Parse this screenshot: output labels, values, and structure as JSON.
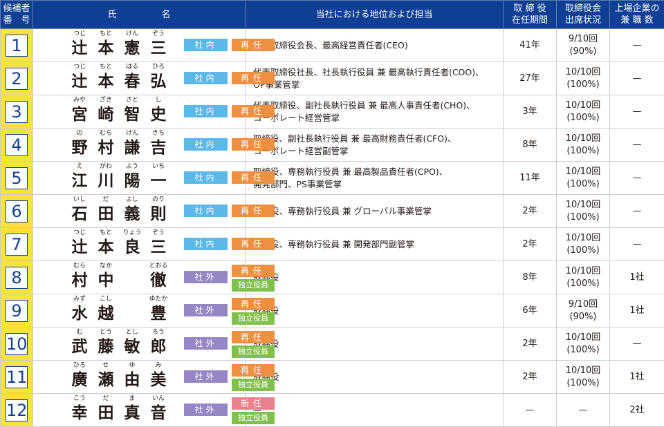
{
  "headers": {
    "num_line1": "候補者",
    "num_line2": "番　号",
    "name": "氏　　　　　名",
    "position": "当社における地位および担当",
    "tenure_line1": "取 締 役",
    "tenure_line2": "在任期間",
    "attendance_line1": "取締役会",
    "attendance_line2": "出席状況",
    "concurrent_line1": "上場企業の",
    "concurrent_line2": "兼 職 数"
  },
  "rows": [
    {
      "num": "1",
      "kanji": [
        "辻",
        "本",
        "憲",
        "三"
      ],
      "ruby": [
        "つじ",
        "もと",
        "けん",
        "ぞう"
      ],
      "kind": "社内",
      "status": "再任",
      "independent": "",
      "position_l1": "代表取締役会長、最高経営責任者(CEO)",
      "position_l2": "",
      "tenure": "41年",
      "att_l1": "9/10回",
      "att_l2": "(90%)",
      "concurrent": "—"
    },
    {
      "num": "2",
      "kanji": [
        "辻",
        "本",
        "春",
        "弘"
      ],
      "ruby": [
        "つじ",
        "もと",
        "はる",
        "ひろ"
      ],
      "kind": "社内",
      "status": "再任",
      "independent": "",
      "position_l1": "代表取締役社長、社長執行役員 兼 最高執行責任者(COO)、",
      "position_l2": "OP事業管掌",
      "tenure": "27年",
      "att_l1": "10/10回",
      "att_l2": "(100%)",
      "concurrent": "—"
    },
    {
      "num": "3",
      "kanji": [
        "宮",
        "崎",
        "智",
        "史"
      ],
      "ruby": [
        "みや",
        "ざき",
        "さと",
        "し"
      ],
      "kind": "社内",
      "status": "再任",
      "independent": "",
      "position_l1": "代表取締役、副社長執行役員 兼 最高人事責任者(CHO)、",
      "position_l2": "コーポレート経営管掌",
      "tenure": "3年",
      "att_l1": "10/10回",
      "att_l2": "(100%)",
      "concurrent": "—"
    },
    {
      "num": "4",
      "kanji": [
        "野",
        "村",
        "謙",
        "吉"
      ],
      "ruby": [
        "の",
        "むら",
        "けん",
        "きち"
      ],
      "kind": "社内",
      "status": "再任",
      "independent": "",
      "position_l1": "取締役、副社長執行役員 兼 最高財務責任者(CFO)、",
      "position_l2": "コーポレート経営副管掌",
      "tenure": "8年",
      "att_l1": "10/10回",
      "att_l2": "(100%)",
      "concurrent": "—"
    },
    {
      "num": "5",
      "kanji": [
        "江",
        "川",
        "陽",
        "一"
      ],
      "ruby": [
        "え",
        "がわ",
        "よう",
        "いち"
      ],
      "kind": "社内",
      "status": "再任",
      "independent": "",
      "position_l1": "取締役、専務執行役員 兼 最高製品責任者(CPO)、",
      "position_l2": "開発部門、PS事業管掌",
      "tenure": "11年",
      "att_l1": "10/10回",
      "att_l2": "(100%)",
      "concurrent": "—"
    },
    {
      "num": "6",
      "kanji": [
        "石",
        "田",
        "義",
        "則"
      ],
      "ruby": [
        "いし",
        "だ",
        "よし",
        "のり"
      ],
      "kind": "社内",
      "status": "再任",
      "independent": "",
      "position_l1": "取締役、専務執行役員 兼 グローバル事業管掌",
      "position_l2": "",
      "tenure": "2年",
      "att_l1": "10/10回",
      "att_l2": "(100%)",
      "concurrent": "—"
    },
    {
      "num": "7",
      "kanji": [
        "辻",
        "本",
        "良",
        "三"
      ],
      "ruby": [
        "つじ",
        "もと",
        "りょう",
        "ぞう"
      ],
      "kind": "社内",
      "status": "再任",
      "independent": "",
      "position_l1": "取締役、専務執行役員 兼 開発部門副管掌",
      "position_l2": "",
      "tenure": "2年",
      "att_l1": "10/10回",
      "att_l2": "(100%)",
      "concurrent": "—"
    },
    {
      "num": "8",
      "kanji": [
        "村",
        "中",
        "",
        "徹"
      ],
      "ruby": [
        "むら",
        "なか",
        "",
        "とおる"
      ],
      "kind": "社外",
      "status": "再任",
      "independent": "独立役員",
      "position_l1": "取締役",
      "position_l2": "",
      "tenure": "8年",
      "att_l1": "10/10回",
      "att_l2": "(100%)",
      "concurrent": "1社"
    },
    {
      "num": "9",
      "kanji": [
        "水",
        "越",
        "",
        "豊"
      ],
      "ruby": [
        "みず",
        "こし",
        "",
        "ゆたか"
      ],
      "kind": "社外",
      "status": "再任",
      "independent": "独立役員",
      "position_l1": "取締役",
      "position_l2": "",
      "tenure": "6年",
      "att_l1": "9/10回",
      "att_l2": "(90%)",
      "concurrent": "1社"
    },
    {
      "num": "10",
      "kanji": [
        "武",
        "藤",
        "敏",
        "郎"
      ],
      "ruby": [
        "む",
        "とう",
        "とし",
        "ろう"
      ],
      "kind": "社外",
      "status": "再任",
      "independent": "独立役員",
      "position_l1": "取締役",
      "position_l2": "",
      "tenure": "2年",
      "att_l1": "10/10回",
      "att_l2": "(100%)",
      "concurrent": "—"
    },
    {
      "num": "11",
      "kanji": [
        "廣",
        "瀬",
        "由",
        "美"
      ],
      "ruby": [
        "ひろ",
        "せ",
        "ゆ",
        "み"
      ],
      "kind": "社外",
      "status": "再任",
      "independent": "独立役員",
      "position_l1": "取締役",
      "position_l2": "",
      "tenure": "2年",
      "att_l1": "10/10回",
      "att_l2": "(100%)",
      "concurrent": "1社"
    },
    {
      "num": "12",
      "kanji": [
        "幸",
        "田",
        "真",
        "音"
      ],
      "ruby": [
        "こう",
        "だ",
        "ま",
        "いん"
      ],
      "kind": "社外",
      "status": "新任",
      "independent": "独立役員",
      "position_l1": "—",
      "position_l2": "",
      "tenure": "—",
      "att_l1": "—",
      "att_l2": "",
      "concurrent": "2社"
    }
  ]
}
